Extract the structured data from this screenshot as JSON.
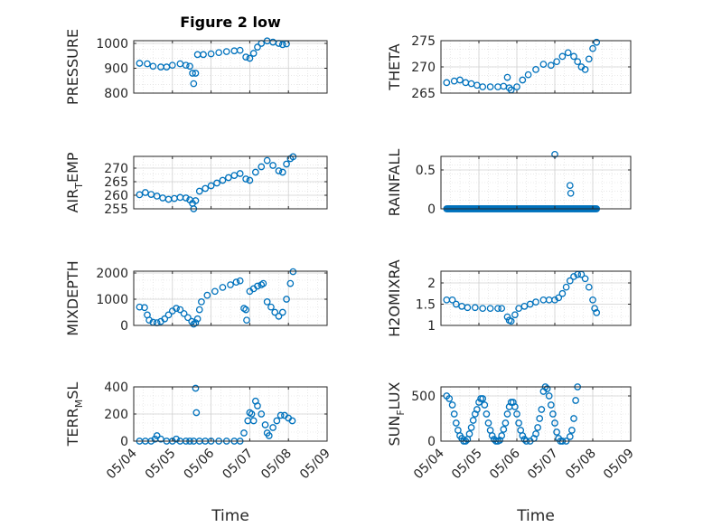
{
  "chart_data": [
    {
      "type": "scatter",
      "title": "Figure 2 low",
      "ylabel_main": "PRESSURE",
      "ylabel_sub": "",
      "xlabel": "",
      "xlim": [
        0,
        5
      ],
      "ylim": [
        800,
        1020
      ],
      "yticks": [
        800,
        900,
        1000
      ],
      "ytick_labels": [
        "800",
        "900",
        "1000"
      ],
      "xticks": [
        0,
        1,
        2,
        3,
        4,
        5
      ],
      "xtick_labels": [
        "05/04",
        "05/05",
        "05/06",
        "05/07",
        "05/08",
        "05/09"
      ],
      "show_xtick_labels": false,
      "grid": true,
      "marker": "circle-open",
      "color": "#0072BD",
      "points": [
        [
          0.15,
          920
        ],
        [
          0.35,
          918
        ],
        [
          0.5,
          908
        ],
        [
          0.7,
          905
        ],
        [
          0.85,
          905
        ],
        [
          1.0,
          912
        ],
        [
          1.2,
          918
        ],
        [
          1.35,
          912
        ],
        [
          1.45,
          908
        ],
        [
          1.52,
          880
        ],
        [
          1.55,
          838
        ],
        [
          1.6,
          880
        ],
        [
          1.65,
          955
        ],
        [
          1.8,
          955
        ],
        [
          2.0,
          958
        ],
        [
          2.2,
          963
        ],
        [
          2.4,
          967
        ],
        [
          2.6,
          970
        ],
        [
          2.75,
          972
        ],
        [
          2.9,
          945
        ],
        [
          3.0,
          940
        ],
        [
          3.1,
          960
        ],
        [
          3.2,
          985
        ],
        [
          3.3,
          1000
        ],
        [
          3.45,
          1010
        ],
        [
          3.6,
          1005
        ],
        [
          3.75,
          1000
        ],
        [
          3.85,
          995
        ],
        [
          3.95,
          998
        ]
      ]
    },
    {
      "type": "scatter",
      "title": "",
      "ylabel_main": "THETA",
      "ylabel_sub": "",
      "xlabel": "",
      "xlim": [
        0,
        5
      ],
      "ylim": [
        265,
        275.5
      ],
      "yticks": [
        265,
        270,
        275
      ],
      "ytick_labels": [
        "265",
        "270",
        "275"
      ],
      "xticks": [
        0,
        1,
        2,
        3,
        4,
        5
      ],
      "xtick_labels": [
        "05/04",
        "05/05",
        "05/06",
        "05/07",
        "05/08",
        "05/09"
      ],
      "show_xtick_labels": false,
      "grid": true,
      "marker": "circle-open",
      "color": "#0072BD",
      "points": [
        [
          0.15,
          267.0
        ],
        [
          0.35,
          267.3
        ],
        [
          0.5,
          267.5
        ],
        [
          0.65,
          267.0
        ],
        [
          0.8,
          266.8
        ],
        [
          0.95,
          266.5
        ],
        [
          1.1,
          266.2
        ],
        [
          1.3,
          266.2
        ],
        [
          1.5,
          266.2
        ],
        [
          1.65,
          266.3
        ],
        [
          1.75,
          268.0
        ],
        [
          1.8,
          266.0
        ],
        [
          1.85,
          265.6
        ],
        [
          2.0,
          266.2
        ],
        [
          2.15,
          267.5
        ],
        [
          2.3,
          268.5
        ],
        [
          2.5,
          269.5
        ],
        [
          2.7,
          270.5
        ],
        [
          2.9,
          270.3
        ],
        [
          3.05,
          271.0
        ],
        [
          3.2,
          272.0
        ],
        [
          3.35,
          272.7
        ],
        [
          3.5,
          272.0
        ],
        [
          3.6,
          271.0
        ],
        [
          3.7,
          270.0
        ],
        [
          3.8,
          269.5
        ],
        [
          3.9,
          271.5
        ],
        [
          4.0,
          273.5
        ],
        [
          4.1,
          274.7
        ]
      ]
    },
    {
      "type": "scatter",
      "title": "",
      "ylabel_main": "AIR",
      "ylabel_sub": "T",
      "ylabel_tail": "EMP",
      "xlabel": "",
      "xlim": [
        0,
        5
      ],
      "ylim": [
        255,
        275
      ],
      "yticks": [
        255,
        260,
        265,
        270
      ],
      "ytick_labels": [
        "255",
        "260",
        "265",
        "270"
      ],
      "xticks": [
        0,
        1,
        2,
        3,
        4,
        5
      ],
      "xtick_labels": [
        "05/04",
        "05/05",
        "05/06",
        "05/07",
        "05/08",
        "05/09"
      ],
      "show_xtick_labels": false,
      "grid": true,
      "marker": "circle-open",
      "color": "#0072BD",
      "points": [
        [
          0.15,
          260.2
        ],
        [
          0.3,
          261.0
        ],
        [
          0.45,
          260.3
        ],
        [
          0.6,
          259.7
        ],
        [
          0.75,
          259.0
        ],
        [
          0.9,
          258.5
        ],
        [
          1.05,
          258.8
        ],
        [
          1.2,
          259.2
        ],
        [
          1.35,
          259.0
        ],
        [
          1.45,
          258.3
        ],
        [
          1.52,
          257.0
        ],
        [
          1.55,
          255.0
        ],
        [
          1.6,
          258.0
        ],
        [
          1.7,
          261.5
        ],
        [
          1.85,
          262.5
        ],
        [
          2.0,
          263.5
        ],
        [
          2.15,
          264.5
        ],
        [
          2.3,
          265.5
        ],
        [
          2.45,
          266.5
        ],
        [
          2.6,
          267.3
        ],
        [
          2.75,
          268.0
        ],
        [
          2.9,
          266.0
        ],
        [
          3.0,
          265.5
        ],
        [
          3.15,
          268.5
        ],
        [
          3.3,
          270.5
        ],
        [
          3.45,
          272.8
        ],
        [
          3.6,
          271.0
        ],
        [
          3.75,
          269.0
        ],
        [
          3.85,
          268.5
        ],
        [
          3.95,
          271.5
        ],
        [
          4.05,
          273.5
        ],
        [
          4.12,
          274.2
        ]
      ]
    },
    {
      "type": "scatter",
      "title": "",
      "ylabel_main": "RAINFALL",
      "ylabel_sub": "",
      "xlabel": "",
      "xlim": [
        0,
        5
      ],
      "ylim": [
        0,
        0.75
      ],
      "yticks": [
        0,
        0.5
      ],
      "ytick_labels": [
        "0",
        "0.5"
      ],
      "xticks": [
        0,
        1,
        2,
        3,
        4,
        5
      ],
      "xtick_labels": [
        "05/04",
        "05/05",
        "05/06",
        "05/07",
        "05/08",
        "05/09"
      ],
      "show_xtick_labels": false,
      "grid": true,
      "marker": "circle-open",
      "color": "#0072BD",
      "points": [
        [
          3.0,
          0.7
        ],
        [
          3.4,
          0.3
        ],
        [
          3.42,
          0.2
        ]
      ],
      "zero_run": [
        0.15,
        4.12
      ]
    },
    {
      "type": "scatter",
      "title": "",
      "ylabel_main": "MIXDEPTH",
      "ylabel_sub": "",
      "xlabel": "",
      "xlim": [
        0,
        5
      ],
      "ylim": [
        0,
        2100
      ],
      "yticks": [
        0,
        1000,
        2000
      ],
      "ytick_labels": [
        "0",
        "1000",
        "2000"
      ],
      "xticks": [
        0,
        1,
        2,
        3,
        4,
        5
      ],
      "xtick_labels": [
        "05/04",
        "05/05",
        "05/06",
        "05/07",
        "05/08",
        "05/09"
      ],
      "show_xtick_labels": false,
      "grid": true,
      "marker": "circle-open",
      "color": "#0072BD",
      "points": [
        [
          0.15,
          700
        ],
        [
          0.28,
          680
        ],
        [
          0.35,
          400
        ],
        [
          0.4,
          200
        ],
        [
          0.5,
          120
        ],
        [
          0.6,
          100
        ],
        [
          0.7,
          150
        ],
        [
          0.8,
          250
        ],
        [
          0.9,
          400
        ],
        [
          1.0,
          550
        ],
        [
          1.1,
          650
        ],
        [
          1.2,
          600
        ],
        [
          1.3,
          450
        ],
        [
          1.4,
          300
        ],
        [
          1.5,
          150
        ],
        [
          1.55,
          50
        ],
        [
          1.6,
          100
        ],
        [
          1.65,
          250
        ],
        [
          1.7,
          600
        ],
        [
          1.75,
          900
        ],
        [
          1.9,
          1150
        ],
        [
          2.1,
          1300
        ],
        [
          2.3,
          1450
        ],
        [
          2.5,
          1550
        ],
        [
          2.65,
          1650
        ],
        [
          2.75,
          1700
        ],
        [
          2.85,
          650
        ],
        [
          2.9,
          600
        ],
        [
          2.92,
          200
        ],
        [
          3.0,
          1300
        ],
        [
          3.1,
          1400
        ],
        [
          3.2,
          1500
        ],
        [
          3.3,
          1550
        ],
        [
          3.35,
          1600
        ],
        [
          3.45,
          900
        ],
        [
          3.55,
          700
        ],
        [
          3.65,
          500
        ],
        [
          3.75,
          350
        ],
        [
          3.85,
          500
        ],
        [
          3.95,
          1000
        ],
        [
          4.05,
          1600
        ],
        [
          4.12,
          2050
        ]
      ]
    },
    {
      "type": "scatter",
      "title": "",
      "ylabel_main": "H2OMIXRA",
      "ylabel_sub": "",
      "xlabel": "",
      "xlim": [
        0,
        5
      ],
      "ylim": [
        1,
        2.3
      ],
      "yticks": [
        1,
        1.5,
        2
      ],
      "ytick_labels": [
        "1",
        "1.5",
        "2"
      ],
      "xticks": [
        0,
        1,
        2,
        3,
        4,
        5
      ],
      "xtick_labels": [
        "05/04",
        "05/05",
        "05/06",
        "05/07",
        "05/08",
        "05/09"
      ],
      "show_xtick_labels": false,
      "grid": true,
      "marker": "circle-open",
      "color": "#0072BD",
      "points": [
        [
          0.15,
          1.6
        ],
        [
          0.3,
          1.6
        ],
        [
          0.4,
          1.5
        ],
        [
          0.55,
          1.45
        ],
        [
          0.7,
          1.42
        ],
        [
          0.9,
          1.42
        ],
        [
          1.1,
          1.4
        ],
        [
          1.3,
          1.4
        ],
        [
          1.5,
          1.4
        ],
        [
          1.6,
          1.4
        ],
        [
          1.75,
          1.2
        ],
        [
          1.8,
          1.12
        ],
        [
          1.85,
          1.1
        ],
        [
          1.95,
          1.25
        ],
        [
          2.05,
          1.4
        ],
        [
          2.2,
          1.45
        ],
        [
          2.35,
          1.5
        ],
        [
          2.5,
          1.55
        ],
        [
          2.7,
          1.6
        ],
        [
          2.85,
          1.6
        ],
        [
          3.0,
          1.6
        ],
        [
          3.1,
          1.65
        ],
        [
          3.2,
          1.75
        ],
        [
          3.3,
          1.9
        ],
        [
          3.4,
          2.05
        ],
        [
          3.5,
          2.15
        ],
        [
          3.6,
          2.2
        ],
        [
          3.7,
          2.2
        ],
        [
          3.8,
          2.1
        ],
        [
          3.9,
          1.9
        ],
        [
          4.0,
          1.6
        ],
        [
          4.05,
          1.4
        ],
        [
          4.1,
          1.3
        ]
      ]
    },
    {
      "type": "scatter",
      "title": "",
      "ylabel_main": "TERR",
      "ylabel_sub": "M",
      "ylabel_tail": "SL",
      "xlabel": "Time",
      "xlim": [
        0,
        5
      ],
      "ylim": [
        0,
        420
      ],
      "yticks": [
        0,
        200,
        400
      ],
      "ytick_labels": [
        "0",
        "200",
        "400"
      ],
      "xticks": [
        0,
        1,
        2,
        3,
        4,
        5
      ],
      "xtick_labels": [
        "05/04",
        "05/05",
        "05/06",
        "05/07",
        "05/08",
        "05/09"
      ],
      "show_xtick_labels": true,
      "grid": true,
      "marker": "circle-open",
      "color": "#0072BD",
      "points": [
        [
          0.15,
          0
        ],
        [
          0.3,
          0
        ],
        [
          0.45,
          0
        ],
        [
          0.55,
          15
        ],
        [
          0.6,
          40
        ],
        [
          0.7,
          15
        ],
        [
          0.85,
          0
        ],
        [
          1.0,
          0
        ],
        [
          1.1,
          15
        ],
        [
          1.2,
          0
        ],
        [
          1.35,
          0
        ],
        [
          1.45,
          0
        ],
        [
          1.55,
          0
        ],
        [
          1.6,
          390
        ],
        [
          1.62,
          210
        ],
        [
          1.7,
          0
        ],
        [
          1.85,
          0
        ],
        [
          2.0,
          0
        ],
        [
          2.2,
          0
        ],
        [
          2.4,
          0
        ],
        [
          2.6,
          0
        ],
        [
          2.75,
          0
        ],
        [
          2.85,
          60
        ],
        [
          2.95,
          150
        ],
        [
          3.0,
          210
        ],
        [
          3.05,
          200
        ],
        [
          3.1,
          150
        ],
        [
          3.15,
          295
        ],
        [
          3.2,
          260
        ],
        [
          3.3,
          200
        ],
        [
          3.4,
          120
        ],
        [
          3.45,
          60
        ],
        [
          3.5,
          40
        ],
        [
          3.6,
          100
        ],
        [
          3.7,
          150
        ],
        [
          3.8,
          190
        ],
        [
          3.9,
          190
        ],
        [
          4.0,
          170
        ],
        [
          4.1,
          150
        ]
      ]
    },
    {
      "type": "scatter",
      "title": "",
      "ylabel_main": "SUN",
      "ylabel_sub": "F",
      "ylabel_tail": "LUX",
      "xlabel": "Time",
      "xlim": [
        0,
        5
      ],
      "ylim": [
        0,
        650
      ],
      "yticks": [
        0,
        200,
        400,
        600
      ],
      "ytick_labels": [
        "0",
        "",
        "",
        ""
      ],
      "ytick_labels_real": [
        "0",
        "500"
      ],
      "xticks": [
        0,
        1,
        2,
        3,
        4,
        5
      ],
      "xtick_labels": [
        "05/04",
        "05/05",
        "05/06",
        "05/07",
        "05/08",
        "05/09"
      ],
      "show_xtick_labels": true,
      "grid": true,
      "marker": "circle-open",
      "color": "#0072BD",
      "points": [
        [
          0.15,
          500
        ],
        [
          0.22,
          470
        ],
        [
          0.3,
          400
        ],
        [
          0.35,
          300
        ],
        [
          0.4,
          200
        ],
        [
          0.45,
          120
        ],
        [
          0.5,
          60
        ],
        [
          0.55,
          30
        ],
        [
          0.6,
          0
        ],
        [
          0.65,
          0
        ],
        [
          0.7,
          20
        ],
        [
          0.75,
          80
        ],
        [
          0.8,
          150
        ],
        [
          0.85,
          230
        ],
        [
          0.9,
          300
        ],
        [
          0.95,
          350
        ],
        [
          1.0,
          430
        ],
        [
          1.05,
          470
        ],
        [
          1.1,
          470
        ],
        [
          1.15,
          400
        ],
        [
          1.2,
          300
        ],
        [
          1.25,
          200
        ],
        [
          1.3,
          120
        ],
        [
          1.35,
          60
        ],
        [
          1.4,
          20
        ],
        [
          1.45,
          0
        ],
        [
          1.5,
          0
        ],
        [
          1.55,
          10
        ],
        [
          1.6,
          60
        ],
        [
          1.65,
          130
        ],
        [
          1.7,
          200
        ],
        [
          1.75,
          300
        ],
        [
          1.8,
          380
        ],
        [
          1.85,
          430
        ],
        [
          1.9,
          430
        ],
        [
          1.95,
          380
        ],
        [
          2.0,
          300
        ],
        [
          2.05,
          200
        ],
        [
          2.1,
          120
        ],
        [
          2.15,
          60
        ],
        [
          2.2,
          20
        ],
        [
          2.25,
          0
        ],
        [
          2.35,
          0
        ],
        [
          2.45,
          30
        ],
        [
          2.5,
          80
        ],
        [
          2.55,
          150
        ],
        [
          2.6,
          250
        ],
        [
          2.65,
          350
        ],
        [
          2.7,
          550
        ],
        [
          2.75,
          600
        ],
        [
          2.8,
          580
        ],
        [
          2.85,
          500
        ],
        [
          2.9,
          400
        ],
        [
          2.95,
          300
        ],
        [
          3.0,
          200
        ],
        [
          3.05,
          100
        ],
        [
          3.1,
          30
        ],
        [
          3.15,
          0
        ],
        [
          3.2,
          0
        ],
        [
          3.3,
          0
        ],
        [
          3.4,
          50
        ],
        [
          3.45,
          120
        ],
        [
          3.5,
          250
        ],
        [
          3.55,
          450
        ],
        [
          3.6,
          600
        ]
      ],
      "y_tick_values_shown": [
        0,
        500
      ]
    }
  ]
}
